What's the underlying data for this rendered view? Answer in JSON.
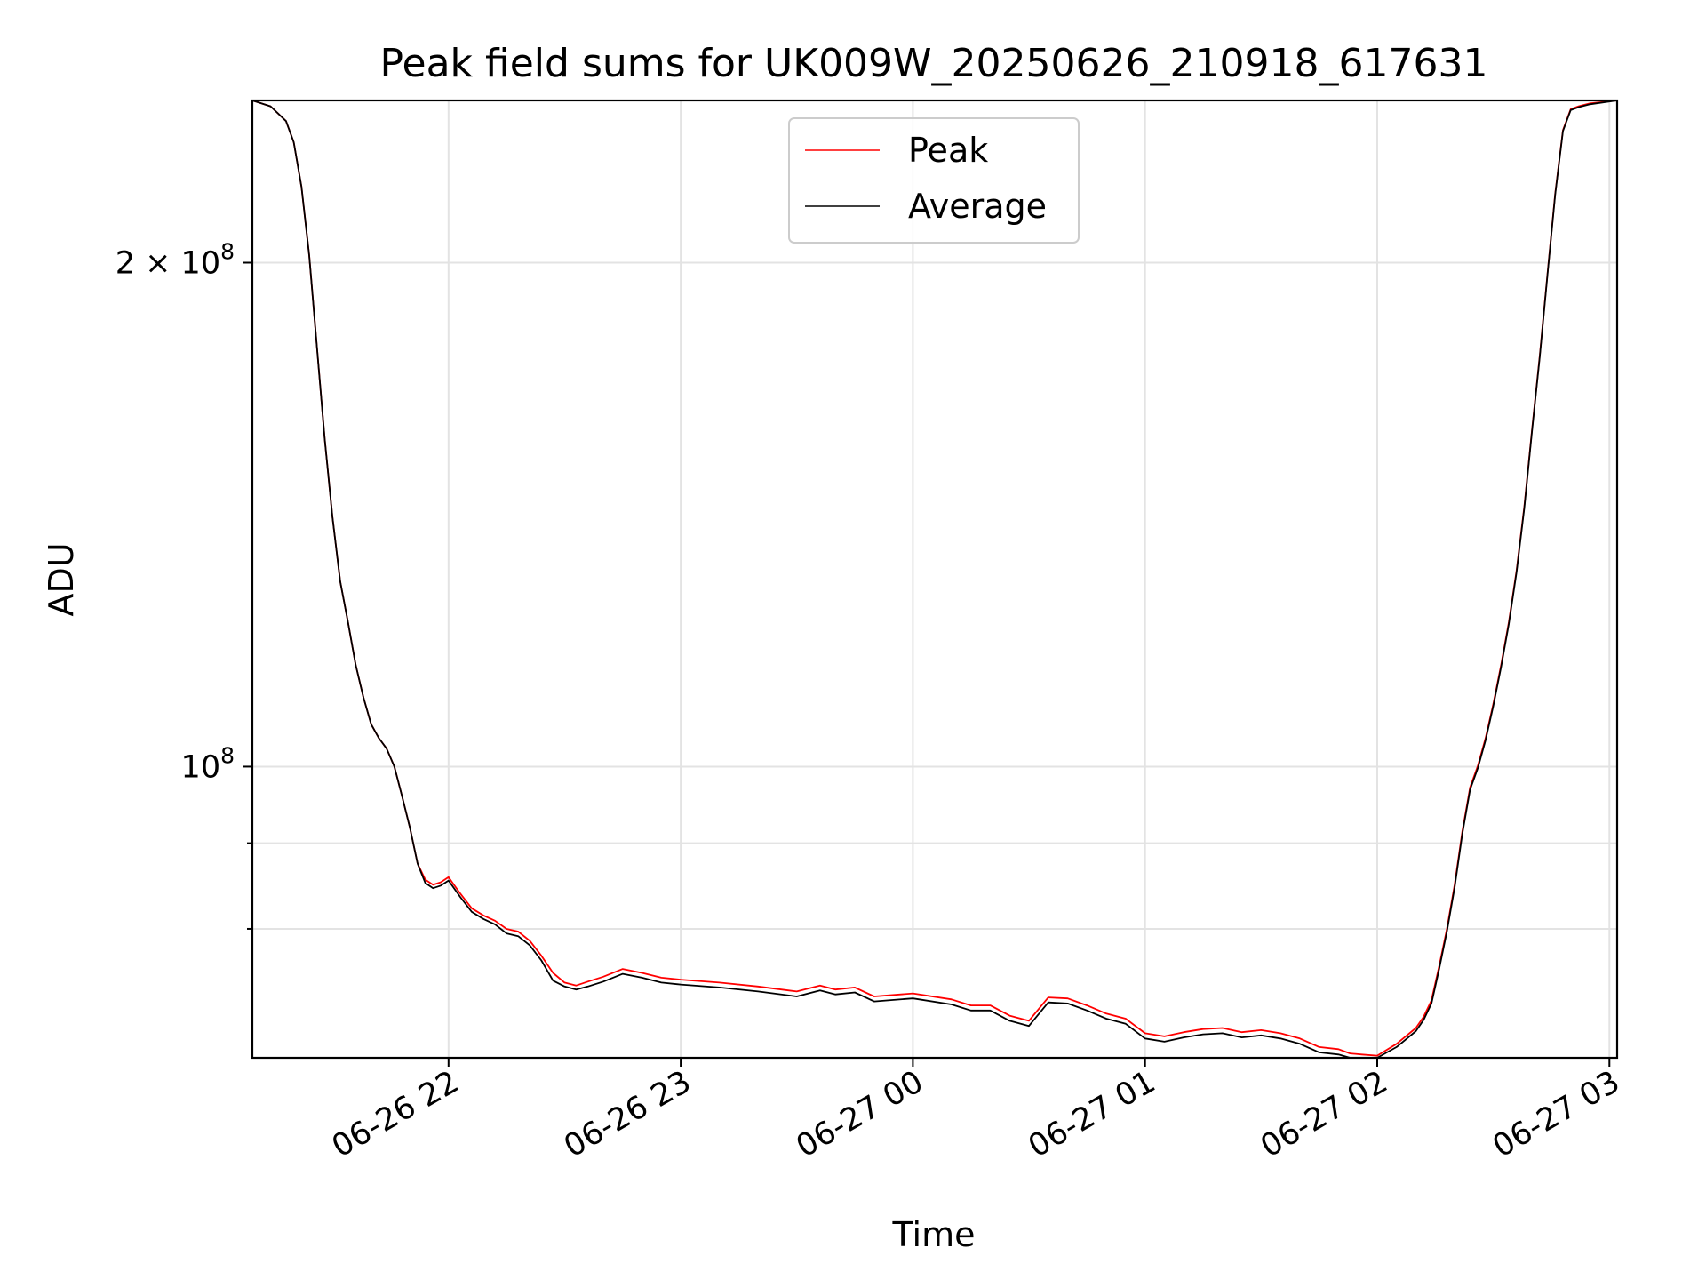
{
  "chart_data": {
    "type": "line",
    "title": "Peak field sums for UK009W_20250626_210918_617631",
    "xlabel": "Time",
    "ylabel": "ADU",
    "xlim": [
      "2025-06-26 21:09:18",
      "2025-06-27 03:02:00"
    ],
    "ylim": [
      67000000,
      250000000
    ],
    "yscale": "log",
    "grid": true,
    "legend_position": "upper center",
    "x_ticks": [
      {
        "value": "2025-06-26 22:00",
        "label": "06-26 22"
      },
      {
        "value": "2025-06-26 23:00",
        "label": "06-26 23"
      },
      {
        "value": "2025-06-27 00:00",
        "label": "06-27 00"
      },
      {
        "value": "2025-06-27 01:00",
        "label": "06-27 01"
      },
      {
        "value": "2025-06-27 02:00",
        "label": "06-27 02"
      },
      {
        "value": "2025-06-27 03:00",
        "label": "06-27 03"
      }
    ],
    "y_ticks": [
      {
        "value": 100000000,
        "base": "10",
        "exp": "8",
        "coef": ""
      },
      {
        "value": 200000000,
        "base": "10",
        "exp": "8",
        "coef": "2 × "
      }
    ],
    "y_minor_ticks": [
      80000000,
      90000000
    ],
    "series": [
      {
        "name": "Peak",
        "color": "#ff0000",
        "x": [
          "2025-06-26 21:09:18",
          "2025-06-26 21:14",
          "2025-06-26 21:18",
          "2025-06-26 21:20",
          "2025-06-26 21:22",
          "2025-06-26 21:24",
          "2025-06-26 21:26",
          "2025-06-26 21:28",
          "2025-06-26 21:30",
          "2025-06-26 21:32",
          "2025-06-26 21:34",
          "2025-06-26 21:36",
          "2025-06-26 21:38",
          "2025-06-26 21:40",
          "2025-06-26 21:42",
          "2025-06-26 21:44",
          "2025-06-26 21:46",
          "2025-06-26 21:48",
          "2025-06-26 21:50",
          "2025-06-26 21:52",
          "2025-06-26 21:54",
          "2025-06-26 21:56",
          "2025-06-26 21:58",
          "2025-06-26 22:00",
          "2025-06-26 22:03",
          "2025-06-26 22:06",
          "2025-06-26 22:09",
          "2025-06-26 22:12",
          "2025-06-26 22:15",
          "2025-06-26 22:18",
          "2025-06-26 22:21",
          "2025-06-26 22:24",
          "2025-06-26 22:27",
          "2025-06-26 22:30",
          "2025-06-26 22:33",
          "2025-06-26 22:36",
          "2025-06-26 22:40",
          "2025-06-26 22:45",
          "2025-06-26 22:50",
          "2025-06-26 22:55",
          "2025-06-26 23:00",
          "2025-06-26 23:10",
          "2025-06-26 23:20",
          "2025-06-26 23:30",
          "2025-06-26 23:36",
          "2025-06-26 23:40",
          "2025-06-26 23:45",
          "2025-06-26 23:50",
          "2025-06-27 00:00",
          "2025-06-27 00:10",
          "2025-06-27 00:15",
          "2025-06-27 00:20",
          "2025-06-27 00:25",
          "2025-06-27 00:30",
          "2025-06-27 00:35",
          "2025-06-27 00:40",
          "2025-06-27 00:45",
          "2025-06-27 00:50",
          "2025-06-27 00:55",
          "2025-06-27 01:00",
          "2025-06-27 01:05",
          "2025-06-27 01:10",
          "2025-06-27 01:15",
          "2025-06-27 01:20",
          "2025-06-27 01:25",
          "2025-06-27 01:30",
          "2025-06-27 01:35",
          "2025-06-27 01:40",
          "2025-06-27 01:45",
          "2025-06-27 01:50",
          "2025-06-27 01:53",
          "2025-06-27 01:56",
          "2025-06-27 02:00",
          "2025-06-27 02:05",
          "2025-06-27 02:10",
          "2025-06-27 02:12",
          "2025-06-27 02:14",
          "2025-06-27 02:16",
          "2025-06-27 02:18",
          "2025-06-27 02:20",
          "2025-06-27 02:22",
          "2025-06-27 02:24",
          "2025-06-27 02:26",
          "2025-06-27 02:28",
          "2025-06-27 02:30",
          "2025-06-27 02:32",
          "2025-06-27 02:34",
          "2025-06-27 02:36",
          "2025-06-27 02:38",
          "2025-06-27 02:40",
          "2025-06-27 02:42",
          "2025-06-27 02:44",
          "2025-06-27 02:46",
          "2025-06-27 02:48",
          "2025-06-27 02:50",
          "2025-06-27 02:52",
          "2025-06-27 02:55",
          "2025-06-27 03:02"
        ],
        "y": [
          250000000,
          248000000,
          243000000,
          236000000,
          222000000,
          202000000,
          178000000,
          157000000,
          141000000,
          129000000,
          122000000,
          115000000,
          110000000,
          106000000,
          104000000,
          102500000,
          100000000,
          96000000,
          92000000,
          87500000,
          85600000,
          85000000,
          85300000,
          85900000,
          84000000,
          82300000,
          81500000,
          80900000,
          80000000,
          79700000,
          78700000,
          77100000,
          75300000,
          74300000,
          74000000,
          74400000,
          74900000,
          75700000,
          75300000,
          74800000,
          74600000,
          74300000,
          73900000,
          73400000,
          74000000,
          73600000,
          73800000,
          72900000,
          73200000,
          72600000,
          72000000,
          72000000,
          71000000,
          70500000,
          72800000,
          72700000,
          72000000,
          71200000,
          70700000,
          69300000,
          69000000,
          69400000,
          69700000,
          69800000,
          69400000,
          69600000,
          69300000,
          68800000,
          68000000,
          67800000,
          67400000,
          67300000,
          67200000,
          68300000,
          69800000,
          70900000,
          72500000,
          76000000,
          80000000,
          85000000,
          91500000,
          97200000,
          100100000,
          104000000,
          109000000,
          115000000,
          122000000,
          131000000,
          143000000,
          159000000,
          176000000,
          197000000,
          220000000,
          240000000,
          247000000,
          248000000,
          249000000,
          250000000
        ]
      },
      {
        "name": "Average",
        "color": "#000000",
        "x": [
          "2025-06-26 21:09:18",
          "2025-06-26 21:14",
          "2025-06-26 21:18",
          "2025-06-26 21:20",
          "2025-06-26 21:22",
          "2025-06-26 21:24",
          "2025-06-26 21:26",
          "2025-06-26 21:28",
          "2025-06-26 21:30",
          "2025-06-26 21:32",
          "2025-06-26 21:34",
          "2025-06-26 21:36",
          "2025-06-26 21:38",
          "2025-06-26 21:40",
          "2025-06-26 21:42",
          "2025-06-26 21:44",
          "2025-06-26 21:46",
          "2025-06-26 21:48",
          "2025-06-26 21:50",
          "2025-06-26 21:52",
          "2025-06-26 21:54",
          "2025-06-26 21:56",
          "2025-06-26 21:58",
          "2025-06-26 22:00",
          "2025-06-26 22:03",
          "2025-06-26 22:06",
          "2025-06-26 22:09",
          "2025-06-26 22:12",
          "2025-06-26 22:15",
          "2025-06-26 22:18",
          "2025-06-26 22:21",
          "2025-06-26 22:24",
          "2025-06-26 22:27",
          "2025-06-26 22:30",
          "2025-06-26 22:33",
          "2025-06-26 22:36",
          "2025-06-26 22:40",
          "2025-06-26 22:45",
          "2025-06-26 22:50",
          "2025-06-26 22:55",
          "2025-06-26 23:00",
          "2025-06-26 23:10",
          "2025-06-26 23:20",
          "2025-06-26 23:30",
          "2025-06-26 23:36",
          "2025-06-26 23:40",
          "2025-06-26 23:45",
          "2025-06-26 23:50",
          "2025-06-27 00:00",
          "2025-06-27 00:10",
          "2025-06-27 00:15",
          "2025-06-27 00:20",
          "2025-06-27 00:25",
          "2025-06-27 00:30",
          "2025-06-27 00:35",
          "2025-06-27 00:40",
          "2025-06-27 00:45",
          "2025-06-27 00:50",
          "2025-06-27 00:55",
          "2025-06-27 01:00",
          "2025-06-27 01:05",
          "2025-06-27 01:10",
          "2025-06-27 01:15",
          "2025-06-27 01:20",
          "2025-06-27 01:25",
          "2025-06-27 01:30",
          "2025-06-27 01:35",
          "2025-06-27 01:40",
          "2025-06-27 01:45",
          "2025-06-27 01:50",
          "2025-06-27 01:53",
          "2025-06-27 01:56",
          "2025-06-27 02:00",
          "2025-06-27 02:05",
          "2025-06-27 02:10",
          "2025-06-27 02:12",
          "2025-06-27 02:14",
          "2025-06-27 02:16",
          "2025-06-27 02:18",
          "2025-06-27 02:20",
          "2025-06-27 02:22",
          "2025-06-27 02:24",
          "2025-06-27 02:26",
          "2025-06-27 02:28",
          "2025-06-27 02:30",
          "2025-06-27 02:32",
          "2025-06-27 02:34",
          "2025-06-27 02:36",
          "2025-06-27 02:38",
          "2025-06-27 02:40",
          "2025-06-27 02:42",
          "2025-06-27 02:44",
          "2025-06-27 02:46",
          "2025-06-27 02:48",
          "2025-06-27 02:50",
          "2025-06-27 02:52",
          "2025-06-27 02:55",
          "2025-06-27 03:02"
        ],
        "y": [
          250000000,
          248000000,
          243000000,
          236000000,
          222000000,
          202000000,
          178000000,
          157000000,
          141000000,
          129000000,
          122000000,
          115000000,
          110000000,
          106000000,
          104000000,
          102500000,
          100000000,
          96000000,
          92000000,
          87500000,
          85200000,
          84600000,
          84900000,
          85500000,
          83600000,
          81900000,
          81100000,
          80500000,
          79500000,
          79200000,
          78200000,
          76600000,
          74500000,
          73900000,
          73600000,
          73900000,
          74400000,
          75200000,
          74800000,
          74300000,
          74100000,
          73800000,
          73400000,
          72900000,
          73500000,
          73100000,
          73300000,
          72400000,
          72700000,
          72100000,
          71500000,
          71500000,
          70500000,
          70000000,
          72300000,
          72200000,
          71500000,
          70700000,
          70200000,
          68800000,
          68500000,
          68900000,
          69200000,
          69300000,
          68900000,
          69100000,
          68800000,
          68300000,
          67500000,
          67300000,
          66900000,
          66800000,
          66900000,
          68000000,
          69500000,
          70600000,
          72200000,
          75700000,
          79700000,
          84700000,
          91200000,
          96900000,
          99800000,
          103700000,
          108700000,
          114700000,
          121700000,
          130700000,
          142700000,
          158700000,
          175700000,
          196700000,
          219700000,
          239700000,
          246700000,
          247700000,
          248700000,
          250000000
        ]
      }
    ]
  }
}
